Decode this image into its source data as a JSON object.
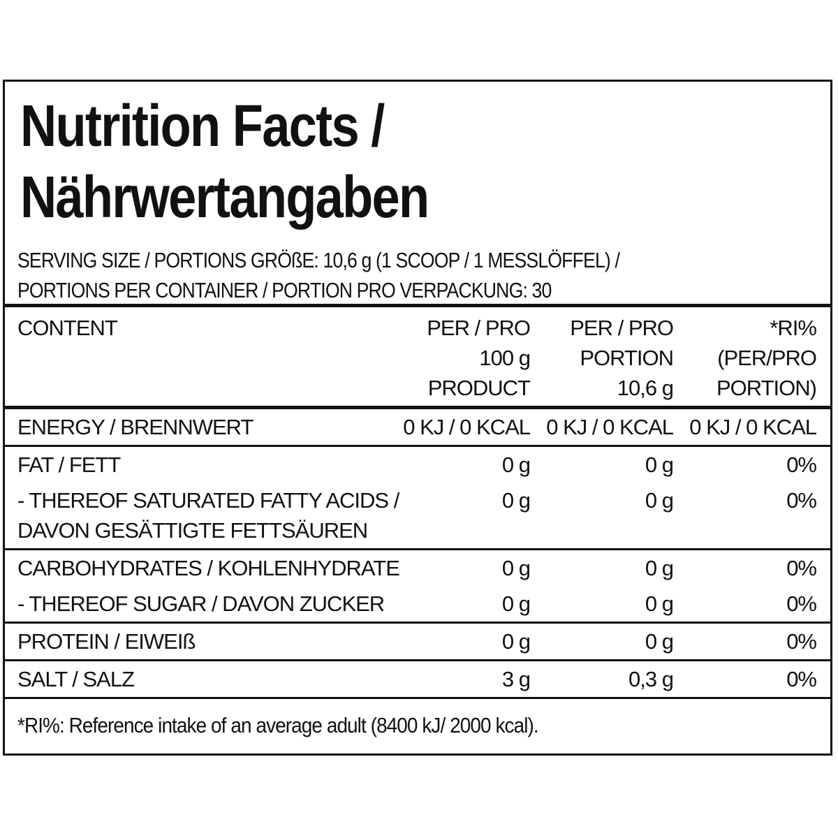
{
  "title": [
    "Nutrition Facts /",
    "Nährwertangaben"
  ],
  "serving": [
    "SERVING SIZE / PORTIONS GRÖßE: 10,6 g (1 SCOOP / 1 MESSLÖFFEL) /",
    "PORTIONS PER CONTAINER / PORTION PRO VERPACKUNG: 30"
  ],
  "table": {
    "header": [
      [
        "CONTENT"
      ],
      [
        "PER / PRO",
        "100 g",
        "PRODUCT"
      ],
      [
        "PER / PRO",
        "PORTION",
        "10,6 g"
      ],
      [
        "*RI%",
        "(PER/PRO",
        "PORTION)"
      ]
    ],
    "groups": [
      [
        [
          [
            "ENERGY / BRENNWERT"
          ],
          [
            "0 KJ / 0 KCAL"
          ],
          [
            "0 KJ / 0 KCAL"
          ],
          [
            "0 KJ / 0 KCAL"
          ]
        ]
      ],
      [
        [
          [
            "FAT / FETT"
          ],
          [
            "0 g"
          ],
          [
            "0 g"
          ],
          [
            "0%"
          ]
        ],
        [
          [
            "- THEREOF SATURATED FATTY ACIDS /",
            "DAVON GESÄTTIGTE FETTSÄUREN"
          ],
          [
            "0 g"
          ],
          [
            "0 g"
          ],
          [
            "0%"
          ]
        ]
      ],
      [
        [
          [
            "CARBOHYDRATES / KOHLENHYDRATE"
          ],
          [
            "0 g"
          ],
          [
            "0 g"
          ],
          [
            "0%"
          ]
        ],
        [
          [
            "- THEREOF SUGAR / DAVON ZUCKER"
          ],
          [
            "0 g"
          ],
          [
            "0 g"
          ],
          [
            "0%"
          ]
        ]
      ],
      [
        [
          [
            "PROTEIN / EIWEIß"
          ],
          [
            "0 g"
          ],
          [
            "0 g"
          ],
          [
            "0%"
          ]
        ]
      ],
      [
        [
          [
            "SALT / SALZ"
          ],
          [
            "3 g"
          ],
          [
            "0,3 g"
          ],
          [
            "0%"
          ]
        ]
      ]
    ]
  },
  "footnote": "*RI%: Reference intake of an average adult (8400 kJ/ 2000 kcal)."
}
